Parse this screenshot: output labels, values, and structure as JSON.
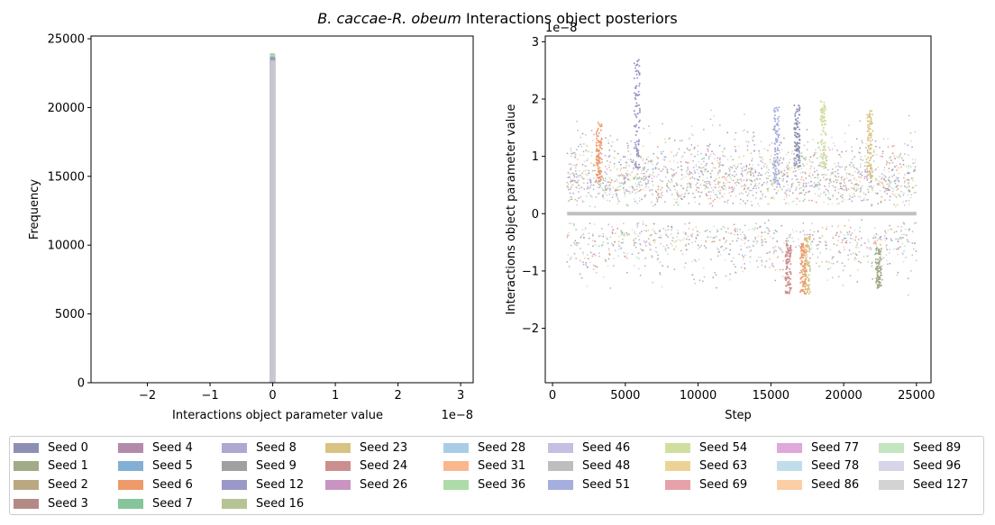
{
  "title": "B. caccae-R. obeum Interactions object posteriors",
  "colors": {
    "seeds": {
      "Seed 0": "#8d8fb5",
      "Seed 1": "#a1ab88",
      "Seed 2": "#bba882",
      "Seed 3": "#b48a86",
      "Seed 4": "#b38aa9",
      "Seed 5": "#83afd6",
      "Seed 6": "#ef9a6a",
      "Seed 7": "#86c59b",
      "Seed 8": "#aca8d2",
      "Seed 9": "#a0a0a0",
      "Seed 12": "#9998c8",
      "Seed 16": "#b5c494",
      "Seed 23": "#d9c383",
      "Seed 24": "#cc8f8e",
      "Seed 26": "#c994c2",
      "Seed 28": "#a9cde7",
      "Seed 31": "#f9b88b",
      "Seed 36": "#addcab",
      "Seed 46": "#c3c0e1",
      "Seed 48": "#bebebe",
      "Seed 51": "#a6aee0",
      "Seed 54": "#d0df9f",
      "Seed 63": "#ecd395",
      "Seed 69": "#e7a2a9",
      "Seed 77": "#e0a8da",
      "Seed 78": "#c0ddea",
      "Seed 86": "#fbcea6",
      "Seed 89": "#c3e6c0",
      "Seed 96": "#d7d5ea",
      "Seed 127": "#d3d3d3"
    }
  },
  "chart_data": [
    {
      "type": "histogram",
      "xlabel": "Interactions object parameter value",
      "ylabel": "Frequency",
      "x_offset_text": "1e−8",
      "x_scale": 1e-08,
      "xlim": [
        -2.9,
        3.2
      ],
      "ylim": [
        0,
        25200
      ],
      "xticks": [
        -2,
        -1,
        0,
        1,
        2,
        3
      ],
      "xtick_labels": [
        "−2",
        "−1",
        "0",
        "1",
        "2",
        "3"
      ],
      "yticks": [
        0,
        5000,
        10000,
        15000,
        20000,
        25000
      ],
      "ytick_labels": [
        "0",
        "5000",
        "10000",
        "15000",
        "20000",
        "25000"
      ],
      "peak": {
        "x": 0,
        "series": [
          {
            "name": "Seed 7",
            "value": 23950
          },
          {
            "name": "Seed 36",
            "value": 23850
          },
          {
            "name": "Seed 0",
            "value": 23700
          },
          {
            "name": "Seed 4",
            "value": 23600
          },
          {
            "name": "Seed 8",
            "value": 23500
          },
          {
            "name": "Seed 127",
            "value": 23400
          }
        ]
      },
      "bar_width": 0.09
    },
    {
      "type": "scatter",
      "xlabel": "Step",
      "ylabel": "Interactions object parameter value",
      "y_offset_text": "1e−8",
      "y_scale": 1e-08,
      "xlim": [
        -500,
        26000
      ],
      "ylim": [
        -2.95,
        3.1
      ],
      "xticks": [
        0,
        5000,
        10000,
        15000,
        20000,
        25000
      ],
      "xtick_labels": [
        "0",
        "5000",
        "10000",
        "15000",
        "20000",
        "25000"
      ],
      "yticks": [
        -2,
        -1,
        0,
        1,
        2,
        3
      ],
      "ytick_labels": [
        "−2",
        "−1",
        "0",
        "1",
        "2",
        "3"
      ],
      "x_range": [
        1000,
        25000
      ],
      "baseline_value": 0,
      "clusters": [
        {
          "x": 5800,
          "y_min": 0.8,
          "y_max": 2.7,
          "series": "Seed 12"
        },
        {
          "x": 15400,
          "y_min": 0.5,
          "y_max": 1.9,
          "series": "Seed 51"
        },
        {
          "x": 17500,
          "y_min": -1.4,
          "y_max": -0.4,
          "series": "Seed 23"
        },
        {
          "x": 17200,
          "y_min": -1.4,
          "y_max": -0.5,
          "series": "Seed 6"
        },
        {
          "x": 3200,
          "y_min": 0.5,
          "y_max": 1.6,
          "series": "Seed 6"
        },
        {
          "x": 16200,
          "y_min": -1.4,
          "y_max": -0.5,
          "series": "Seed 24"
        },
        {
          "x": 18600,
          "y_min": 0.8,
          "y_max": 2.0,
          "series": "Seed 54"
        },
        {
          "x": 21800,
          "y_min": 0.6,
          "y_max": 1.8,
          "series": "Seed 23"
        },
        {
          "x": 22400,
          "y_min": -1.3,
          "y_max": -0.6,
          "series": "Seed 1"
        },
        {
          "x": 16800,
          "y_min": 0.8,
          "y_max": 1.9,
          "series": "Seed 0"
        }
      ]
    }
  ],
  "legend": {
    "columns": [
      [
        "Seed 0",
        "Seed 1",
        "Seed 2",
        "Seed 3"
      ],
      [
        "Seed 4",
        "Seed 5",
        "Seed 6",
        "Seed 7"
      ],
      [
        "Seed 8",
        "Seed 9",
        "Seed 12",
        "Seed 16"
      ],
      [
        "Seed 23",
        "Seed 24",
        "Seed 26"
      ],
      [
        "Seed 28",
        "Seed 31",
        "Seed 36"
      ],
      [
        "Seed 46",
        "Seed 48",
        "Seed 51"
      ],
      [
        "Seed 54",
        "Seed 63",
        "Seed 69"
      ],
      [
        "Seed 77",
        "Seed 78",
        "Seed 86"
      ],
      [
        "Seed 89",
        "Seed 96",
        "Seed 127"
      ]
    ]
  }
}
